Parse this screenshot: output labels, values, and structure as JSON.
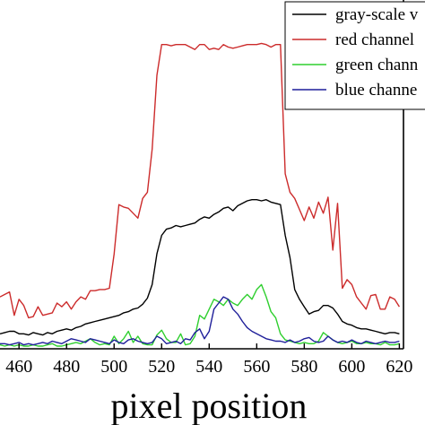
{
  "chart_data": {
    "type": "line",
    "xlabel": "pixel position",
    "ylabel": "",
    "x_ticks": [
      460,
      480,
      500,
      520,
      540,
      560,
      580,
      600,
      620
    ],
    "xlim": [
      452,
      624
    ],
    "ylim": [
      0,
      255
    ],
    "grid": false,
    "legend_position": "top-right",
    "x": [
      452,
      454,
      456,
      458,
      460,
      462,
      464,
      466,
      468,
      470,
      472,
      474,
      476,
      478,
      480,
      482,
      484,
      486,
      488,
      490,
      492,
      494,
      496,
      498,
      500,
      502,
      504,
      506,
      508,
      510,
      512,
      514,
      516,
      518,
      520,
      522,
      524,
      526,
      528,
      530,
      532,
      534,
      536,
      538,
      540,
      542,
      544,
      546,
      548,
      550,
      552,
      554,
      556,
      558,
      560,
      562,
      564,
      566,
      568,
      570,
      572,
      574,
      576,
      578,
      580,
      582,
      584,
      586,
      588,
      590,
      592,
      594,
      596,
      598,
      600,
      602,
      604,
      606,
      608,
      610,
      612,
      614,
      616,
      618,
      620
    ],
    "series": [
      {
        "name": "gray-scale v",
        "color": "#000000",
        "values": [
          10,
          11,
          12,
          12,
          10,
          10,
          9,
          11,
          10,
          9,
          11,
          10,
          12,
          13,
          14,
          13,
          15,
          16,
          18,
          19,
          20,
          21,
          22,
          23,
          24,
          25,
          27,
          28,
          30,
          31,
          34,
          39,
          50,
          75,
          90,
          95,
          96,
          98,
          97,
          98,
          99,
          100,
          103,
          105,
          104,
          107,
          109,
          112,
          113,
          110,
          114,
          116,
          118,
          119,
          119,
          118,
          119,
          117,
          116,
          115,
          90,
          72,
          46,
          38,
          32,
          26,
          28,
          29,
          33,
          33,
          31,
          26,
          20,
          18,
          17,
          15,
          14,
          14,
          13,
          12,
          11,
          10,
          11,
          11,
          10
        ]
      },
      {
        "name": "red channel",
        "color": "#cc2b2b",
        "values": [
          40,
          42,
          44,
          25,
          38,
          33,
          23,
          24,
          32,
          25,
          26,
          27,
          35,
          32,
          36,
          30,
          36,
          40,
          38,
          45,
          45,
          46,
          46,
          47,
          75,
          115,
          113,
          112,
          108,
          104,
          120,
          125,
          160,
          220,
          245,
          245,
          244,
          245,
          245,
          245,
          243,
          241,
          245,
          245,
          241,
          242,
          241,
          245,
          243,
          242,
          243,
          244,
          245,
          245,
          245,
          246,
          245,
          243,
          245,
          245,
          140,
          125,
          120,
          111,
          102,
          113,
          104,
          117,
          108,
          121,
          78,
          116,
          47,
          54,
          50,
          40,
          35,
          30,
          41,
          42,
          30,
          30,
          40,
          38,
          32
        ]
      },
      {
        "name": "green chann",
        "color": "#2fcf2f",
        "values": [
          1,
          0,
          1,
          0,
          1,
          0,
          0,
          1,
          0,
          0,
          1,
          2,
          0,
          0,
          1,
          2,
          3,
          2,
          4,
          6,
          3,
          1,
          2,
          1,
          8,
          2,
          6,
          12,
          3,
          8,
          2,
          1,
          1,
          9,
          13,
          6,
          3,
          3,
          10,
          1,
          2,
          8,
          25,
          22,
          30,
          38,
          36,
          33,
          38,
          35,
          33,
          38,
          42,
          38,
          46,
          50,
          40,
          28,
          23,
          10,
          5,
          4,
          3,
          2,
          3,
          2,
          2,
          4,
          11,
          8,
          5,
          3,
          2,
          3,
          4,
          2,
          2,
          3,
          2,
          2,
          1,
          3,
          1,
          1,
          2
        ]
      },
      {
        "name": "blue channe",
        "color": "#1f1f9a",
        "values": [
          2,
          2,
          1,
          2,
          3,
          1,
          2,
          1,
          2,
          3,
          2,
          4,
          3,
          2,
          4,
          6,
          5,
          4,
          3,
          6,
          5,
          4,
          3,
          2,
          5,
          3,
          2,
          5,
          6,
          4,
          3,
          2,
          3,
          8,
          6,
          2,
          3,
          4,
          2,
          6,
          5,
          11,
          14,
          6,
          12,
          30,
          35,
          40,
          38,
          30,
          26,
          20,
          15,
          12,
          10,
          8,
          6,
          5,
          4,
          4,
          3,
          5,
          3,
          4,
          6,
          7,
          4,
          3,
          4,
          8,
          5,
          3,
          4,
          3,
          5,
          3,
          2,
          4,
          3,
          2,
          3,
          4,
          3,
          3,
          4
        ]
      }
    ]
  }
}
